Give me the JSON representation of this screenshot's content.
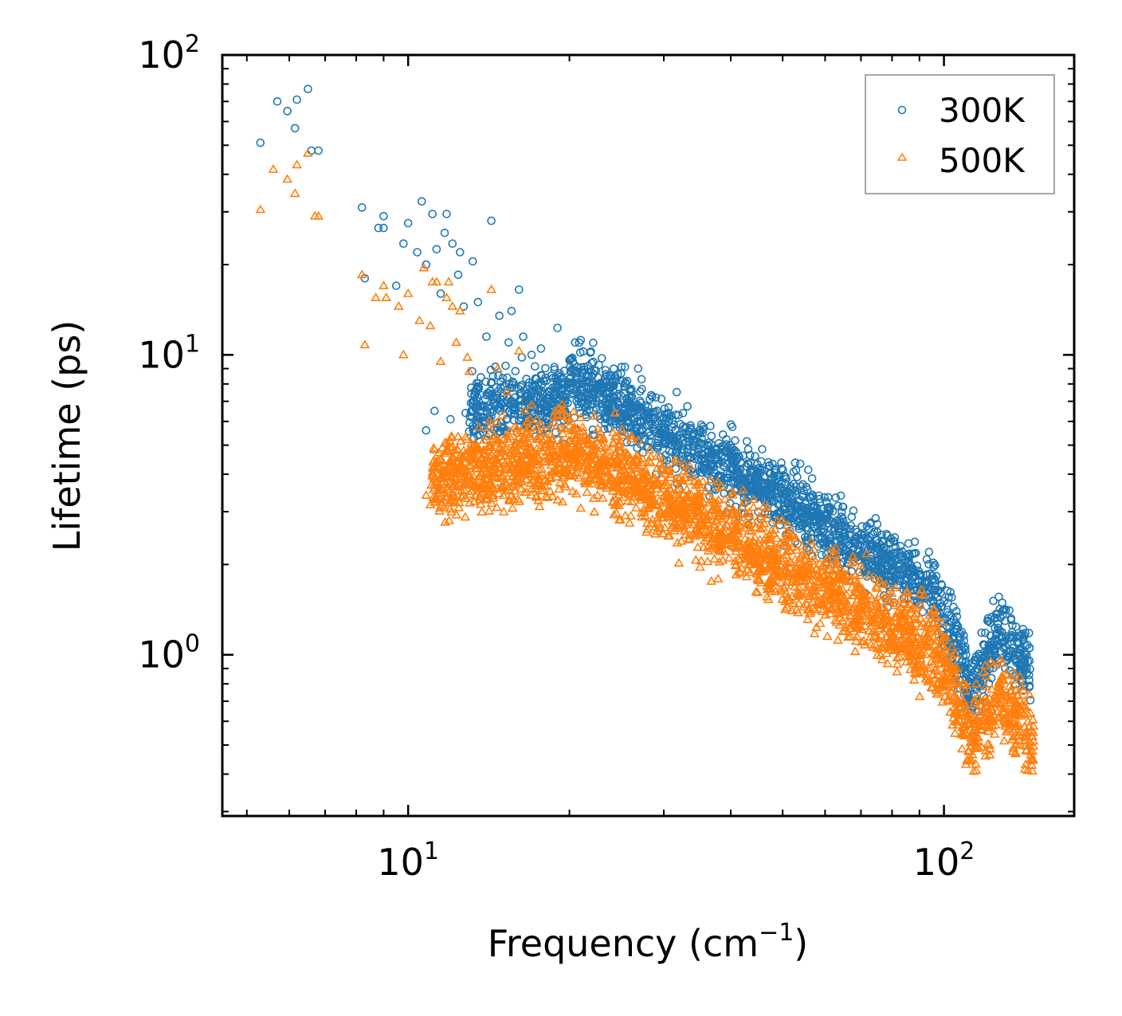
{
  "chart_data": {
    "type": "scatter",
    "xscale": "log",
    "yscale": "log",
    "xlim": [
      4.5,
      175
    ],
    "ylim": [
      0.29,
      100
    ],
    "xlabel": "Frequency (cm",
    "xlabel_sup": "−1",
    "xlabel_end": ")",
    "ylabel": "Lifetime (ps)",
    "x_ticks": [
      {
        "value": 10,
        "base": "10",
        "exp": "1"
      },
      {
        "value": 100,
        "base": "10",
        "exp": "2"
      }
    ],
    "y_ticks": [
      {
        "value": 1,
        "base": "10",
        "exp": "0"
      },
      {
        "value": 10,
        "base": "10",
        "exp": "1"
      },
      {
        "value": 100,
        "base": "10",
        "exp": "2"
      }
    ],
    "legend": {
      "position": "top-right"
    },
    "series": [
      {
        "name": "300K",
        "marker": "circle",
        "color": "#1f77b4",
        "points": [
          [
            5.3,
            51
          ],
          [
            5.7,
            70
          ],
          [
            5.95,
            65
          ],
          [
            6.15,
            57
          ],
          [
            6.2,
            71
          ],
          [
            6.5,
            77
          ],
          [
            6.6,
            48
          ],
          [
            6.8,
            48
          ],
          [
            8.2,
            31
          ],
          [
            8.3,
            18
          ],
          [
            8.8,
            26.5
          ],
          [
            9.0,
            29
          ],
          [
            9.0,
            26.5
          ],
          [
            9.5,
            17
          ],
          [
            9.8,
            23.5
          ],
          [
            10.0,
            27.5
          ],
          [
            10.4,
            22
          ],
          [
            10.6,
            32.5
          ],
          [
            10.8,
            20
          ],
          [
            11.1,
            29.5
          ],
          [
            11.3,
            22.5
          ],
          [
            11.5,
            16
          ],
          [
            11.7,
            25.5
          ],
          [
            11.8,
            29.5
          ],
          [
            12.1,
            23.5
          ],
          [
            12.4,
            18.5
          ],
          [
            12.5,
            22
          ],
          [
            12.7,
            14.5
          ],
          [
            13.2,
            20.5
          ],
          [
            13.5,
            15
          ],
          [
            14.0,
            11.5
          ],
          [
            14.3,
            28
          ],
          [
            14.8,
            13.5
          ],
          [
            15.4,
            11
          ],
          [
            15.6,
            14
          ],
          [
            16.1,
            16.5
          ],
          [
            16.4,
            11.5
          ],
          [
            17.0,
            10
          ],
          [
            17.7,
            10.5
          ],
          [
            19.0,
            12.3
          ],
          [
            20.5,
            11
          ],
          [
            21.0,
            11.2
          ],
          [
            22.0,
            9.4
          ],
          [
            23.5,
            8.5
          ],
          [
            25.5,
            8
          ],
          [
            10.8,
            5.6
          ],
          [
            11.2,
            6.5
          ],
          [
            12.0,
            6.1
          ],
          [
            12.8,
            6.4
          ],
          [
            13.5,
            7.8
          ],
          [
            14.4,
            8.5
          ],
          [
            15.2,
            9.2
          ],
          [
            16.3,
            9.8
          ]
        ]
      },
      {
        "name": "500K",
        "marker": "triangle",
        "color": "#ff7f0e",
        "points": [
          [
            5.3,
            30.5
          ],
          [
            5.6,
            41.5
          ],
          [
            5.95,
            38.5
          ],
          [
            6.15,
            34.5
          ],
          [
            6.2,
            43
          ],
          [
            6.5,
            47
          ],
          [
            6.7,
            29
          ],
          [
            6.8,
            29
          ],
          [
            8.2,
            18.5
          ],
          [
            8.3,
            10.8
          ],
          [
            8.7,
            15.5
          ],
          [
            9.0,
            17
          ],
          [
            9.1,
            15.5
          ],
          [
            9.6,
            14.5
          ],
          [
            9.8,
            10
          ],
          [
            10.0,
            16
          ],
          [
            10.5,
            13
          ],
          [
            10.7,
            19.5
          ],
          [
            11.0,
            12.5
          ],
          [
            11.1,
            17.5
          ],
          [
            11.3,
            17.5
          ],
          [
            11.5,
            9.5
          ],
          [
            11.8,
            15.5
          ],
          [
            11.9,
            17.5
          ],
          [
            12.1,
            14.5
          ],
          [
            12.3,
            11
          ],
          [
            12.5,
            14
          ],
          [
            12.9,
            9.8
          ],
          [
            13.0,
            8.8
          ],
          [
            14.3,
            16.5
          ],
          [
            14.7,
            9
          ],
          [
            15.3,
            7.5
          ],
          [
            16.1,
            10.3
          ],
          [
            17.0,
            6.8
          ],
          [
            10.8,
            3.4
          ],
          [
            11.2,
            3.9
          ],
          [
            12.2,
            3.7
          ],
          [
            12.7,
            4.8
          ]
        ]
      }
    ]
  }
}
